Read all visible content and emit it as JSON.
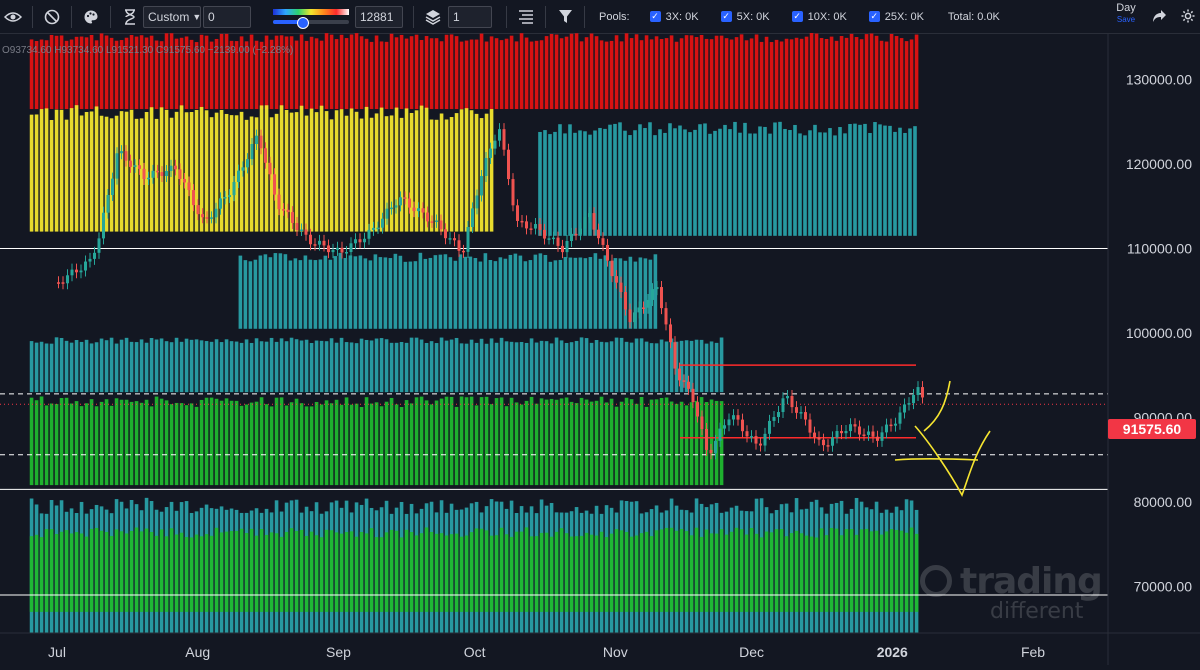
{
  "toolbar": {
    "mode_select": "Custom",
    "mode_value": "0",
    "slider_value": "12881",
    "slider_fraction": 0.38,
    "layers_value": "1",
    "pools_label": "Pools:",
    "pools": [
      {
        "label": "3X: 0K",
        "checked": true
      },
      {
        "label": "5X: 0K",
        "checked": true
      },
      {
        "label": "10X: 0K",
        "checked": true
      },
      {
        "label": "25X: 0K",
        "checked": true
      }
    ],
    "total_label": "Total: 0.0K",
    "interval_label": "Day",
    "interval_sub": "Save"
  },
  "icons": {
    "visibility": "eye-icon",
    "hide": "ban-icon",
    "palette": "palette-icon",
    "timer": "hourglass-icon",
    "layers": "layers-icon",
    "lines": "lines-icon",
    "filter": "filter-icon",
    "share": "share-icon",
    "settings": "gear-icon"
  },
  "watermark": {
    "line1": "trading",
    "line2": "different"
  },
  "chart_data": {
    "type": "candlestick",
    "symbol_info": "O93734.60 H93734.60 L91521.30 C91575.60 −2139.00 (−2.28%)",
    "x_ticks": [
      "Jul",
      "Aug",
      "Sep",
      "Oct",
      "Nov",
      "Dec",
      "2026",
      "Feb"
    ],
    "y_ticks": [
      70000,
      80000,
      90000,
      100000,
      110000,
      120000,
      130000
    ],
    "y_tick_labels": [
      "70000.00",
      "80000.00",
      "90000.00",
      "100000.00",
      "110000.00",
      "120000.00",
      "130000.00"
    ],
    "ylim": [
      64500,
      135500
    ],
    "last_price": 91575.6,
    "last_price_label": "91575.60",
    "price_path": [
      [
        "2025-07-01",
        106000
      ],
      [
        "2025-07-08",
        108500
      ],
      [
        "2025-07-10",
        111500
      ],
      [
        "2025-07-14",
        121500
      ],
      [
        "2025-07-20",
        118500
      ],
      [
        "2025-07-27",
        119500
      ],
      [
        "2025-08-02",
        113000
      ],
      [
        "2025-08-08",
        117000
      ],
      [
        "2025-08-14",
        123500
      ],
      [
        "2025-08-18",
        115500
      ],
      [
        "2025-08-25",
        111000
      ],
      [
        "2025-09-01",
        109500
      ],
      [
        "2025-09-08",
        112000
      ],
      [
        "2025-09-14",
        116000
      ],
      [
        "2025-09-22",
        113000
      ],
      [
        "2025-09-28",
        109500
      ],
      [
        "2025-10-02",
        118500
      ],
      [
        "2025-10-06",
        124500
      ],
      [
        "2025-10-10",
        113000
      ],
      [
        "2025-10-14",
        112500
      ],
      [
        "2025-10-20",
        110000
      ],
      [
        "2025-10-26",
        114000
      ],
      [
        "2025-10-30",
        108500
      ],
      [
        "2025-11-04",
        101500
      ],
      [
        "2025-11-10",
        105500
      ],
      [
        "2025-11-14",
        95500
      ],
      [
        "2025-11-18",
        92000
      ],
      [
        "2025-11-21",
        85500
      ],
      [
        "2025-11-26",
        90500
      ],
      [
        "2025-12-02",
        86500
      ],
      [
        "2025-12-08",
        92500
      ],
      [
        "2025-12-12",
        90000
      ],
      [
        "2025-12-16",
        86500
      ],
      [
        "2025-12-22",
        89000
      ],
      [
        "2025-12-28",
        87500
      ],
      [
        "2026-01-02",
        90000
      ],
      [
        "2026-01-06",
        93500
      ],
      [
        "2026-01-08",
        91575.6
      ]
    ],
    "horizontal_lines": [
      {
        "price": 110000,
        "style": "solid",
        "color": "#ffffff"
      },
      {
        "price": 81500,
        "style": "solid",
        "color": "#ffffff"
      },
      {
        "price": 69000,
        "style": "solid",
        "color": "#ffffff"
      },
      {
        "price": 92800,
        "style": "dashed",
        "color": "#ffffff"
      },
      {
        "price": 85600,
        "style": "dashed",
        "color": "#ffffff"
      },
      {
        "price": 91575.6,
        "style": "dotted",
        "color": "#f23645"
      },
      {
        "price": 96200,
        "style": "solid",
        "color": "#ff2b2b"
      },
      {
        "price": 87600,
        "style": "solid",
        "color": "#ff2b2b"
      }
    ],
    "liquidation_heatmap": {
      "color_scale": [
        "#28a0a8",
        "#1fb82f",
        "#f2e62e",
        "#e31212"
      ],
      "bands": [
        {
          "from": "2025-06-25",
          "to": "2026-01-10",
          "low": 126500,
          "high": 135500,
          "level": 3
        },
        {
          "from": "2025-06-25",
          "to": "2025-10-05",
          "low": 112000,
          "high": 127000,
          "level": 2
        },
        {
          "from": "2025-10-15",
          "to": "2026-01-10",
          "low": 111500,
          "high": 125000,
          "level": 0
        },
        {
          "from": "2025-08-10",
          "to": "2025-11-10",
          "low": 100500,
          "high": 109500,
          "level": 0
        },
        {
          "from": "2025-06-25",
          "to": "2025-11-25",
          "low": 93000,
          "high": 99500,
          "level": 0
        },
        {
          "from": "2025-06-25",
          "to": "2025-11-25",
          "low": 82000,
          "high": 92500,
          "level": 1
        },
        {
          "from": "2025-06-25",
          "to": "2026-01-10",
          "low": 64500,
          "high": 80500,
          "level": 0
        },
        {
          "from": "2025-06-25",
          "to": "2026-01-10",
          "low": 67000,
          "high": 77000,
          "level": 1
        }
      ]
    },
    "annotation": {
      "color": "#f5e430",
      "shape": "hand-drawn down-then-up arrow"
    },
    "grid": false
  }
}
